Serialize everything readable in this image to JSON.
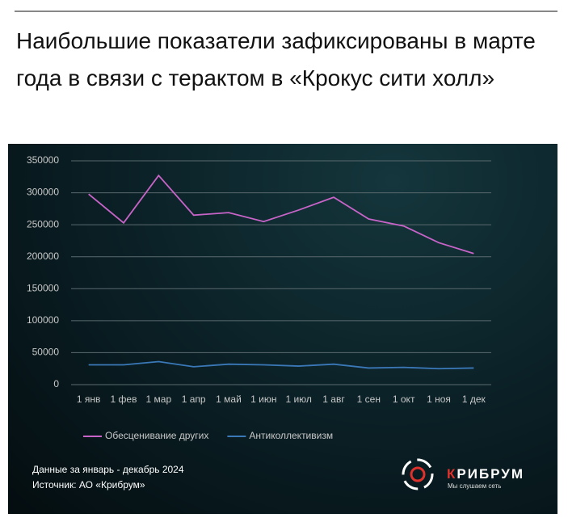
{
  "title": "Наибольшие показатели зафиксированы в марте года в связи с терактом в «Крокус сити холл»",
  "chart_data": {
    "type": "line",
    "categories": [
      "1 янв",
      "1 фев",
      "1 мар",
      "1 апр",
      "1 май",
      "1 июн",
      "1 июл",
      "1 авг",
      "1 сен",
      "1 окт",
      "1 ноя",
      "1 дек"
    ],
    "series": [
      {
        "name": "Обесценивание других",
        "color": "#c864c8",
        "values": [
          298000,
          253000,
          327000,
          265000,
          269000,
          255000,
          273000,
          293000,
          259000,
          248000,
          222000,
          205000
        ]
      },
      {
        "name": "Антиколлективизм",
        "color": "#3a78b8",
        "values": [
          31000,
          31000,
          36000,
          28000,
          32000,
          31000,
          29000,
          32000,
          26000,
          27000,
          25000,
          26000
        ]
      }
    ],
    "ylim": [
      0,
      350000
    ],
    "yticks": [
      0,
      50000,
      100000,
      150000,
      200000,
      250000,
      300000,
      350000
    ],
    "grid": true,
    "legend": "bottom"
  },
  "footer": {
    "note": "Данные за январь - декабрь 2024",
    "source": "Источник: АО «Крибрум»",
    "brand": "КРИБРУМ",
    "tagline": "Мы слушаем сеть"
  }
}
